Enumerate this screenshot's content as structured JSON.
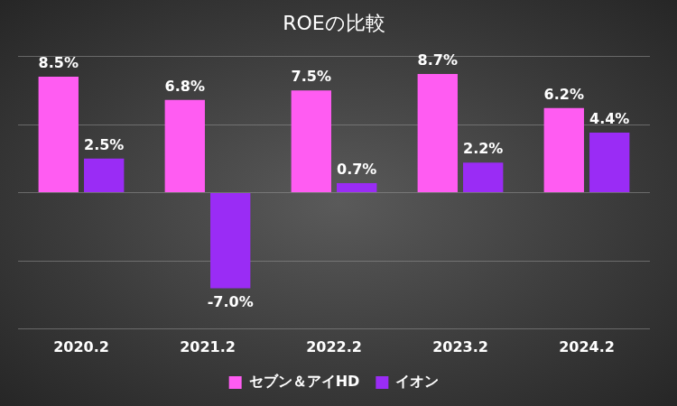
{
  "chart_data": {
    "type": "bar",
    "title": "ROEの比較",
    "categories": [
      "2020.2",
      "2021.2",
      "2022.2",
      "2023.2",
      "2024.2"
    ],
    "series": [
      {
        "name": "セブン＆アイHD",
        "color": "#ff5cf2",
        "values": [
          8.5,
          6.8,
          7.5,
          8.7,
          6.2
        ],
        "value_labels": [
          "8.5%",
          "6.8%",
          "7.5%",
          "8.7%",
          "6.2%"
        ]
      },
      {
        "name": "イオン",
        "color": "#9a2cf5",
        "values": [
          2.5,
          -7.0,
          0.7,
          2.2,
          4.4
        ],
        "value_labels": [
          "2.5%",
          "-7.0%",
          "0.7%",
          "2.2%",
          "4.4%"
        ]
      }
    ],
    "ylim": [
      -10,
      10
    ],
    "yticks": [
      -10,
      -5,
      0,
      5,
      10
    ],
    "grid": true,
    "legend": "bottom",
    "data_labels": true,
    "tick_labels": "x"
  }
}
